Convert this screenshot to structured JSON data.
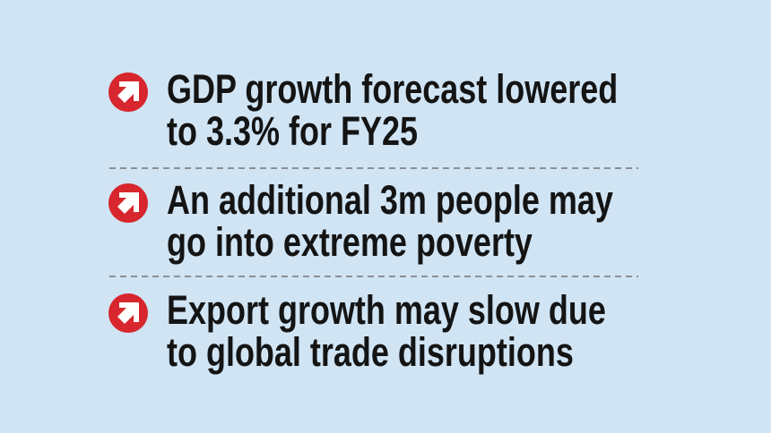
{
  "items": [
    {
      "lines": [
        "GDP growth forecast lowered",
        "to 3.3% for FY25"
      ]
    },
    {
      "lines": [
        "An additional 3m people may",
        "go into extreme poverty"
      ]
    },
    {
      "lines": [
        "Export growth may slow due",
        "to global trade disruptions"
      ]
    }
  ]
}
